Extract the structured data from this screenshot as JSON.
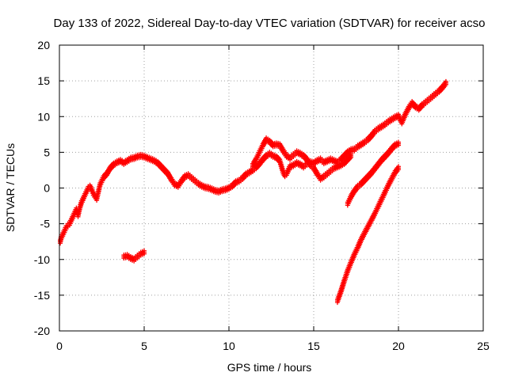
{
  "chart_data": {
    "type": "scatter",
    "title": "Day 133 of 2022, Sidereal Day-to-day VTEC variation (SDTVAR) for receiver acso",
    "xlabel": "GPS time / hours",
    "ylabel": "SDTVAR / TECUs",
    "xlim": [
      0,
      25
    ],
    "ylim": [
      -20,
      20
    ],
    "xticks": [
      "0",
      "5",
      "10",
      "15",
      "20",
      "25"
    ],
    "yticks": [
      "20",
      "15",
      "10",
      "5",
      "0",
      "-5",
      "-10",
      "-15",
      "-20"
    ],
    "grid": true,
    "marker": "plus",
    "series_color": "#ff0000",
    "series": [
      {
        "name": "main",
        "points": [
          [
            0.05,
            -7.5
          ],
          [
            0.1,
            -7.0
          ],
          [
            0.2,
            -6.5
          ],
          [
            0.3,
            -6.0
          ],
          [
            0.4,
            -5.5
          ],
          [
            0.5,
            -5.2
          ],
          [
            0.6,
            -5.0
          ],
          [
            0.7,
            -4.5
          ],
          [
            0.8,
            -4.0
          ],
          [
            0.9,
            -3.5
          ],
          [
            1.0,
            -3.0
          ],
          [
            1.1,
            -3.8
          ],
          [
            1.2,
            -2.8
          ],
          [
            1.3,
            -2.0
          ],
          [
            1.4,
            -1.5
          ],
          [
            1.5,
            -1.0
          ],
          [
            1.6,
            -0.5
          ],
          [
            1.7,
            0.0
          ],
          [
            1.8,
            0.2
          ],
          [
            1.9,
            -0.2
          ],
          [
            2.0,
            -0.8
          ],
          [
            2.2,
            -1.5
          ],
          [
            2.3,
            -0.5
          ],
          [
            2.4,
            0.5
          ],
          [
            2.5,
            1.0
          ],
          [
            2.6,
            1.5
          ],
          [
            2.8,
            2.0
          ],
          [
            3.0,
            2.8
          ],
          [
            3.2,
            3.3
          ],
          [
            3.4,
            3.6
          ],
          [
            3.6,
            3.8
          ],
          [
            3.8,
            3.5
          ],
          [
            4.0,
            3.8
          ],
          [
            4.2,
            4.1
          ],
          [
            4.4,
            4.2
          ],
          [
            4.6,
            4.4
          ],
          [
            4.8,
            4.5
          ],
          [
            5.0,
            4.4
          ],
          [
            5.2,
            4.2
          ],
          [
            5.4,
            4.0
          ],
          [
            5.6,
            3.8
          ],
          [
            5.8,
            3.5
          ],
          [
            6.0,
            3.0
          ],
          [
            6.2,
            2.5
          ],
          [
            6.4,
            2.0
          ],
          [
            6.6,
            1.2
          ],
          [
            6.8,
            0.5
          ],
          [
            7.0,
            0.3
          ],
          [
            7.2,
            1.0
          ],
          [
            7.4,
            1.6
          ],
          [
            7.6,
            1.8
          ],
          [
            7.8,
            1.4
          ],
          [
            8.0,
            1.0
          ],
          [
            8.2,
            0.6
          ],
          [
            8.4,
            0.3
          ],
          [
            8.6,
            0.1
          ],
          [
            8.8,
            0.0
          ],
          [
            9.0,
            -0.2
          ],
          [
            9.2,
            -0.4
          ],
          [
            9.4,
            -0.5
          ],
          [
            9.6,
            -0.3
          ],
          [
            9.8,
            -0.2
          ],
          [
            10.0,
            0.0
          ],
          [
            10.2,
            0.3
          ],
          [
            10.4,
            0.8
          ],
          [
            10.6,
            1.0
          ],
          [
            10.8,
            1.4
          ],
          [
            11.0,
            1.9
          ],
          [
            11.2,
            2.2
          ],
          [
            11.4,
            2.5
          ],
          [
            11.6,
            2.9
          ],
          [
            11.8,
            3.4
          ],
          [
            12.0,
            4.0
          ],
          [
            12.2,
            4.5
          ],
          [
            12.4,
            4.8
          ],
          [
            12.6,
            4.5
          ],
          [
            12.8,
            4.3
          ],
          [
            13.0,
            3.8
          ],
          [
            13.1,
            3.0
          ],
          [
            13.2,
            2.2
          ],
          [
            13.3,
            1.8
          ],
          [
            13.4,
            2.0
          ],
          [
            13.5,
            2.5
          ],
          [
            13.6,
            3.0
          ],
          [
            13.8,
            3.2
          ],
          [
            14.0,
            3.5
          ],
          [
            14.2,
            3.3
          ],
          [
            14.4,
            3.0
          ],
          [
            14.6,
            3.4
          ],
          [
            14.8,
            3.6
          ],
          [
            15.0,
            3.5
          ],
          [
            15.2,
            3.8
          ],
          [
            15.4,
            4.0
          ],
          [
            15.6,
            3.6
          ],
          [
            15.8,
            3.8
          ],
          [
            16.0,
            4.0
          ],
          [
            16.2,
            3.8
          ],
          [
            16.4,
            3.6
          ],
          [
            16.6,
            4.0
          ],
          [
            16.8,
            4.5
          ],
          [
            17.0,
            5.0
          ],
          [
            17.2,
            5.3
          ],
          [
            17.4,
            5.4
          ],
          [
            17.6,
            5.8
          ],
          [
            17.8,
            6.1
          ],
          [
            18.0,
            6.4
          ],
          [
            18.2,
            6.8
          ],
          [
            18.4,
            7.3
          ],
          [
            18.6,
            7.9
          ],
          [
            18.8,
            8.3
          ],
          [
            19.0,
            8.6
          ],
          [
            19.2,
            8.9
          ],
          [
            19.4,
            9.3
          ],
          [
            19.6,
            9.6
          ],
          [
            19.8,
            9.9
          ],
          [
            20.0,
            10.1
          ],
          [
            20.2,
            9.2
          ],
          [
            20.4,
            10.3
          ],
          [
            20.6,
            11.2
          ],
          [
            20.8,
            11.9
          ],
          [
            21.0,
            11.4
          ],
          [
            21.2,
            11.1
          ],
          [
            21.4,
            11.6
          ],
          [
            21.6,
            12.0
          ],
          [
            21.8,
            12.4
          ],
          [
            22.0,
            12.8
          ],
          [
            22.2,
            13.2
          ],
          [
            22.4,
            13.6
          ],
          [
            22.6,
            14.1
          ],
          [
            22.8,
            14.7
          ]
        ]
      },
      {
        "name": "upper_branch",
        "points": [
          [
            11.4,
            3.2
          ],
          [
            11.6,
            4.0
          ],
          [
            11.8,
            5.0
          ],
          [
            12.0,
            6.0
          ],
          [
            12.2,
            6.8
          ],
          [
            12.4,
            6.5
          ],
          [
            12.6,
            6.0
          ],
          [
            12.8,
            6.1
          ],
          [
            13.0,
            6.0
          ],
          [
            13.2,
            5.2
          ],
          [
            13.4,
            4.5
          ],
          [
            13.6,
            4.2
          ],
          [
            13.8,
            4.6
          ],
          [
            14.0,
            5.0
          ],
          [
            14.2,
            4.8
          ],
          [
            14.4,
            4.5
          ],
          [
            14.6,
            4.0
          ],
          [
            14.8,
            3.2
          ],
          [
            15.0,
            2.8
          ],
          [
            15.2,
            2.0
          ],
          [
            15.4,
            1.3
          ],
          [
            15.6,
            1.6
          ],
          [
            15.8,
            2.0
          ],
          [
            16.0,
            2.4
          ],
          [
            16.2,
            2.8
          ],
          [
            16.4,
            3.0
          ],
          [
            16.6,
            3.2
          ],
          [
            16.8,
            3.5
          ],
          [
            17.0,
            4.0
          ],
          [
            17.2,
            4.5
          ]
        ]
      },
      {
        "name": "side_segment",
        "points": [
          [
            3.8,
            -9.6
          ],
          [
            4.0,
            -9.5
          ],
          [
            4.2,
            -9.8
          ],
          [
            4.4,
            -10.0
          ],
          [
            4.6,
            -9.6
          ],
          [
            4.8,
            -9.2
          ],
          [
            5.0,
            -9.0
          ]
        ]
      },
      {
        "name": "branch_a",
        "points": [
          [
            17.0,
            -2.2
          ],
          [
            17.2,
            -1.2
          ],
          [
            17.4,
            -0.4
          ],
          [
            17.6,
            0.2
          ],
          [
            17.8,
            0.6
          ],
          [
            18.0,
            1.1
          ],
          [
            18.2,
            1.6
          ],
          [
            18.4,
            2.1
          ],
          [
            18.6,
            2.7
          ],
          [
            18.8,
            3.3
          ],
          [
            19.0,
            3.9
          ],
          [
            19.2,
            4.4
          ],
          [
            19.4,
            4.9
          ],
          [
            19.6,
            5.5
          ],
          [
            19.8,
            6.0
          ],
          [
            20.0,
            6.2
          ]
        ]
      },
      {
        "name": "branch_b",
        "points": [
          [
            16.4,
            -15.8
          ],
          [
            16.6,
            -14.5
          ],
          [
            16.8,
            -13.0
          ],
          [
            17.0,
            -11.6
          ],
          [
            17.2,
            -10.4
          ],
          [
            17.4,
            -9.3
          ],
          [
            17.6,
            -8.3
          ],
          [
            17.8,
            -7.2
          ],
          [
            18.0,
            -6.3
          ],
          [
            18.2,
            -5.4
          ],
          [
            18.4,
            -4.5
          ],
          [
            18.6,
            -3.6
          ],
          [
            18.8,
            -2.6
          ],
          [
            19.0,
            -1.6
          ],
          [
            19.2,
            -0.6
          ],
          [
            19.4,
            0.4
          ],
          [
            19.6,
            1.3
          ],
          [
            19.8,
            2.2
          ],
          [
            20.0,
            2.8
          ]
        ]
      }
    ]
  }
}
